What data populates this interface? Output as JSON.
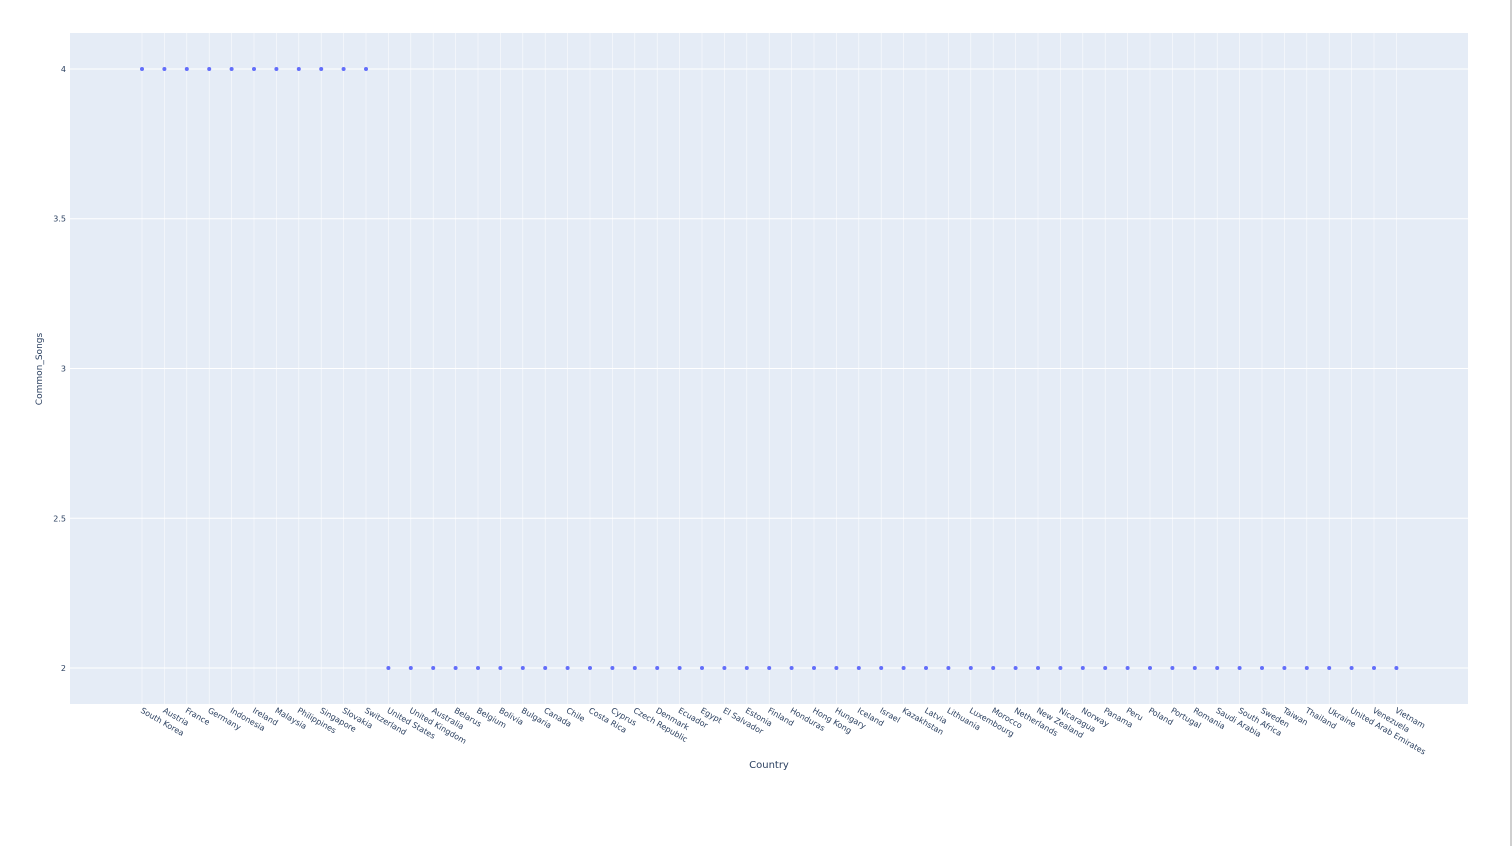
{
  "colors": {
    "marker": "#636efa",
    "plot_bg": "#e5ecf6",
    "grid": "#ffffff",
    "text": "#2a3f5f"
  },
  "chart_data": {
    "type": "scatter",
    "title": "",
    "xlabel": "Country",
    "ylabel": "Common_Songs",
    "ylim": [
      1.88,
      4.12
    ],
    "yticks": [
      2,
      2.5,
      3,
      3.5,
      4
    ],
    "ytick_labels": [
      "2",
      "2.5",
      "3",
      "3.5",
      "4"
    ],
    "grid": true,
    "legend": "none",
    "categories": [
      "South Korea",
      "Austria",
      "France",
      "Germany",
      "Indonesia",
      "Ireland",
      "Malaysia",
      "Philippines",
      "Singapore",
      "Slovakia",
      "Switzerland",
      "United States",
      "United Kingdom",
      "Australia",
      "Belarus",
      "Belgium",
      "Bolivia",
      "Bulgaria",
      "Canada",
      "Chile",
      "Costa Rica",
      "Cyprus",
      "Czech Republic",
      "Denmark",
      "Ecuador",
      "Egypt",
      "El Salvador",
      "Estonia",
      "Finland",
      "Honduras",
      "Hong Kong",
      "Hungary",
      "Iceland",
      "Israel",
      "Kazakhstan",
      "Latvia",
      "Lithuania",
      "Luxembourg",
      "Morocco",
      "Netherlands",
      "New Zealand",
      "Nicaragua",
      "Norway",
      "Panama",
      "Peru",
      "Poland",
      "Portugal",
      "Romania",
      "Saudi Arabia",
      "South Africa",
      "Sweden",
      "Taiwan",
      "Thailand",
      "Ukraine",
      "United Arab Emirates",
      "Venezuela",
      "Vietnam"
    ],
    "values": [
      4,
      4,
      4,
      4,
      4,
      4,
      4,
      4,
      4,
      4,
      4,
      2,
      2,
      2,
      2,
      2,
      2,
      2,
      2,
      2,
      2,
      2,
      2,
      2,
      2,
      2,
      2,
      2,
      2,
      2,
      2,
      2,
      2,
      2,
      2,
      2,
      2,
      2,
      2,
      2,
      2,
      2,
      2,
      2,
      2,
      2,
      2,
      2,
      2,
      2,
      2,
      2,
      2,
      2,
      2,
      2,
      2
    ]
  }
}
